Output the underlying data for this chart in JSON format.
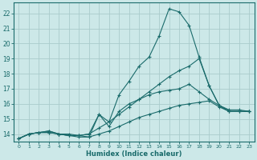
{
  "xlabel": "Humidex (Indice chaleur)",
  "ylabel": "",
  "background_color": "#cce8e8",
  "grid_color": "#aacccc",
  "line_color": "#1a6b6b",
  "xlim": [
    -0.5,
    23.5
  ],
  "ylim": [
    13.5,
    22.7
  ],
  "yticks": [
    14,
    15,
    16,
    17,
    18,
    19,
    20,
    21,
    22
  ],
  "xticks": [
    0,
    1,
    2,
    3,
    4,
    5,
    6,
    7,
    8,
    9,
    10,
    11,
    12,
    13,
    14,
    15,
    16,
    17,
    18,
    19,
    20,
    21,
    22,
    23
  ],
  "lines": [
    {
      "x": [
        0,
        1,
        2,
        3,
        4,
        5,
        6,
        7,
        8,
        9,
        10,
        11,
        12,
        13,
        14,
        15,
        16,
        17,
        18,
        19,
        20,
        21,
        22,
        23
      ],
      "y": [
        13.7,
        14.0,
        14.1,
        14.2,
        14.0,
        14.0,
        13.9,
        13.8,
        15.3,
        14.8,
        16.6,
        17.5,
        18.5,
        19.1,
        20.5,
        22.3,
        22.1,
        21.2,
        19.1,
        17.2,
        15.9,
        15.6,
        15.6,
        15.5
      ]
    },
    {
      "x": [
        0,
        1,
        2,
        3,
        4,
        5,
        6,
        7,
        8,
        9,
        10,
        11,
        12,
        13,
        14,
        15,
        16,
        17,
        18,
        19,
        20,
        21,
        22,
        23
      ],
      "y": [
        13.7,
        14.0,
        14.1,
        14.2,
        14.0,
        13.9,
        13.9,
        14.0,
        14.4,
        14.8,
        15.3,
        15.8,
        16.3,
        16.8,
        17.3,
        17.8,
        18.2,
        18.5,
        19.0,
        17.2,
        15.9,
        15.5,
        15.5,
        15.5
      ]
    },
    {
      "x": [
        0,
        1,
        2,
        3,
        4,
        5,
        6,
        7,
        8,
        9,
        10,
        11,
        12,
        13,
        14,
        15,
        16,
        17,
        18,
        19,
        20,
        21,
        22,
        23
      ],
      "y": [
        13.7,
        14.0,
        14.1,
        14.1,
        14.0,
        13.9,
        13.9,
        14.0,
        15.3,
        14.5,
        15.5,
        16.0,
        16.3,
        16.6,
        16.8,
        16.9,
        17.0,
        17.3,
        16.8,
        16.3,
        15.9,
        15.5,
        15.5,
        15.5
      ]
    },
    {
      "x": [
        0,
        1,
        2,
        3,
        4,
        5,
        6,
        7,
        8,
        9,
        10,
        11,
        12,
        13,
        14,
        15,
        16,
        17,
        18,
        19,
        20,
        21,
        22,
        23
      ],
      "y": [
        13.7,
        14.0,
        14.1,
        14.1,
        14.0,
        13.9,
        13.8,
        13.8,
        14.0,
        14.2,
        14.5,
        14.8,
        15.1,
        15.3,
        15.5,
        15.7,
        15.9,
        16.0,
        16.1,
        16.2,
        15.8,
        15.5,
        15.5,
        15.5
      ]
    }
  ]
}
